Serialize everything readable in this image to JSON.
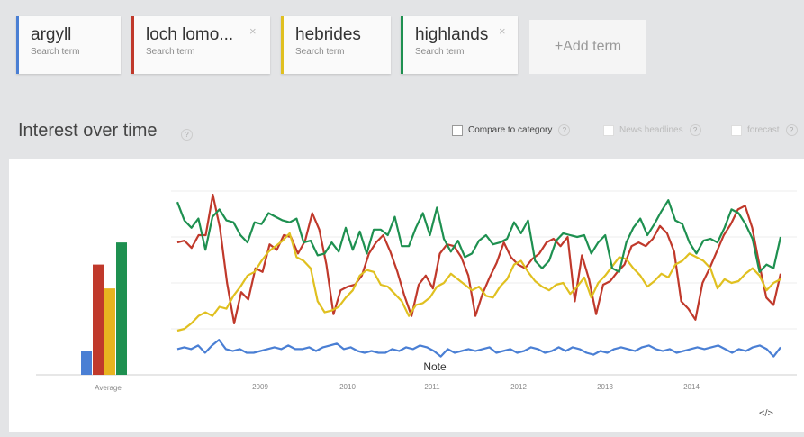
{
  "terms": [
    {
      "name": "argyll",
      "sub": "Search term",
      "color": "#4a7fd4",
      "close": false
    },
    {
      "name": "loch lomo...",
      "sub": "Search term",
      "color": "#c0392b",
      "close": true
    },
    {
      "name": "hebrides",
      "sub": "Search term",
      "color": "#e0c020",
      "close": false
    },
    {
      "name": "highlands",
      "sub": "Search term",
      "color": "#1e9050",
      "close": true
    }
  ],
  "close_glyph": "×",
  "add_term": "+Add term",
  "section": {
    "title": "Interest over time",
    "help": "?"
  },
  "options": {
    "compare": "Compare to category",
    "news": "News headlines",
    "forecast": "forecast"
  },
  "embed_glyph": "</>",
  "chart_data": {
    "type": "line",
    "x_ticks": [
      "2009",
      "2010",
      "2011",
      "2012",
      "2013",
      "2014"
    ],
    "average_label": "Average",
    "note": "Note",
    "ylim": [
      0,
      100
    ],
    "average": {
      "series": [
        "argyll",
        "loch lomo...",
        "hebrides",
        "highlands"
      ],
      "values": [
        13,
        60,
        47,
        72
      ],
      "colors": [
        "#4a7fd4",
        "#c0392b",
        "#e8b420",
        "#1e9050"
      ]
    },
    "series": [
      {
        "name": "argyll",
        "color": "#4a7fd4",
        "values": [
          14,
          15,
          14,
          16,
          12,
          16,
          19,
          14,
          13,
          14,
          12,
          12,
          13,
          14,
          15,
          14,
          16,
          14,
          14,
          15,
          13,
          15,
          16,
          17,
          14,
          15,
          13,
          12,
          13,
          12,
          12,
          14,
          13,
          15,
          14,
          16,
          15,
          13,
          10,
          14,
          12,
          13,
          14,
          13,
          14,
          15,
          12,
          13,
          14,
          12,
          13,
          15,
          14,
          12,
          13,
          15,
          13,
          15,
          14,
          12,
          11,
          13,
          12,
          14,
          15,
          14,
          13,
          15,
          16,
          14,
          13,
          14,
          12,
          13,
          14,
          15,
          14,
          15,
          16,
          14,
          12,
          14,
          13,
          15,
          16,
          14,
          10,
          15
        ]
      },
      {
        "name": "loch lomo...",
        "color": "#c0392b",
        "values": [
          72,
          73,
          69,
          76,
          76,
          98,
          80,
          50,
          28,
          45,
          41,
          58,
          56,
          71,
          68,
          76,
          75,
          66,
          73,
          88,
          79,
          60,
          33,
          46,
          48,
          49,
          54,
          66,
          72,
          76,
          67,
          56,
          43,
          32,
          49,
          54,
          47,
          66,
          71,
          70,
          64,
          54,
          32,
          44,
          53,
          61,
          72,
          64,
          60,
          58,
          63,
          66,
          72,
          74,
          70,
          75,
          40,
          65,
          52,
          33,
          49,
          51,
          56,
          60,
          70,
          72,
          70,
          74,
          81,
          77,
          67,
          40,
          36,
          30,
          50,
          58,
          67,
          76,
          82,
          90,
          92,
          80,
          60,
          42,
          38,
          55
        ]
      },
      {
        "name": "hebrides",
        "color": "#e0c020",
        "values": [
          24,
          25,
          28,
          32,
          34,
          32,
          37,
          36,
          43,
          48,
          54,
          56,
          62,
          67,
          70,
          73,
          77,
          64,
          62,
          58,
          40,
          34,
          35,
          37,
          42,
          46,
          54,
          57,
          56,
          49,
          48,
          44,
          40,
          32,
          38,
          39,
          42,
          48,
          50,
          55,
          52,
          49,
          46,
          48,
          43,
          42,
          48,
          52,
          60,
          62,
          56,
          51,
          48,
          46,
          49,
          50,
          44,
          48,
          53,
          42,
          50,
          54,
          59,
          64,
          63,
          58,
          54,
          48,
          51,
          55,
          53,
          60,
          62,
          66,
          64,
          62,
          58,
          47,
          52,
          50,
          51,
          55,
          58,
          54,
          46,
          50,
          52
        ]
      },
      {
        "name": "highlands",
        "color": "#1e9050",
        "values": [
          94,
          84,
          80,
          85,
          68,
          86,
          90,
          84,
          83,
          76,
          72,
          83,
          82,
          88,
          86,
          84,
          83,
          85,
          72,
          73,
          65,
          66,
          72,
          67,
          80,
          68,
          78,
          66,
          79,
          79,
          76,
          86,
          70,
          70,
          80,
          88,
          76,
          91,
          74,
          67,
          73,
          64,
          66,
          73,
          76,
          71,
          72,
          74,
          83,
          77,
          84,
          62,
          58,
          62,
          73,
          77,
          76,
          75,
          76,
          66,
          72,
          76,
          58,
          56,
          72,
          80,
          85,
          76,
          82,
          89,
          95,
          84,
          82,
          72,
          66,
          73,
          74,
          72,
          80,
          90,
          88,
          82,
          74,
          56,
          60,
          58,
          75
        ]
      }
    ]
  }
}
